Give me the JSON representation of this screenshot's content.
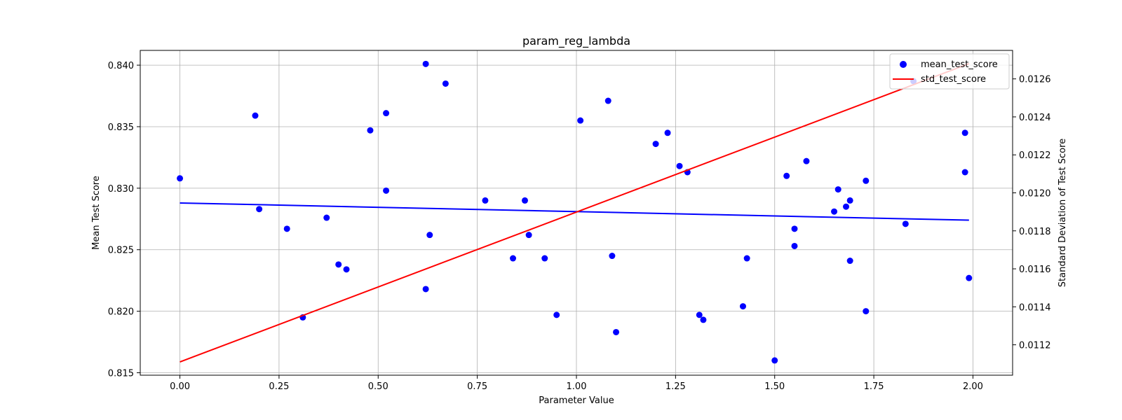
{
  "chart_data": {
    "type": "scatter",
    "title": "param_reg_lambda",
    "xlabel": "Parameter Value",
    "ylabel": "Mean Test Score",
    "y2label": "Standard Deviation of Test Score",
    "xlim": [
      -0.1,
      2.1
    ],
    "ylim": [
      0.8148,
      0.8412
    ],
    "y2lim": [
      0.01104,
      0.01275
    ],
    "xticks": [
      "0.00",
      "0.25",
      "0.50",
      "0.75",
      "1.00",
      "1.25",
      "1.50",
      "1.75",
      "2.00"
    ],
    "yticks": [
      "0.815",
      "0.820",
      "0.825",
      "0.830",
      "0.835",
      "0.840"
    ],
    "y2ticks": [
      "0.0112",
      "0.0114",
      "0.0116",
      "0.0118",
      "0.0120",
      "0.0122",
      "0.0124",
      "0.0126"
    ],
    "grid": true,
    "legend_position": "top-right",
    "series": [
      {
        "name": "mean_test_score",
        "kind": "scatter",
        "axis": "left",
        "color": "#0000ff",
        "x": [
          0.0,
          0.19,
          0.2,
          0.27,
          0.31,
          0.37,
          0.4,
          0.42,
          0.48,
          0.52,
          0.52,
          0.62,
          0.62,
          0.63,
          0.67,
          0.77,
          0.84,
          0.87,
          0.88,
          0.92,
          0.95,
          1.01,
          1.08,
          1.09,
          1.1,
          1.2,
          1.23,
          1.26,
          1.28,
          1.31,
          1.32,
          1.42,
          1.43,
          1.5,
          1.53,
          1.55,
          1.55,
          1.58,
          1.65,
          1.66,
          1.68,
          1.69,
          1.69,
          1.73,
          1.73,
          1.83,
          1.85,
          1.98,
          1.98,
          1.99
        ],
        "y": [
          0.8308,
          0.8359,
          0.8283,
          0.8267,
          0.8195,
          0.8276,
          0.8238,
          0.8234,
          0.8347,
          0.8298,
          0.8361,
          0.8218,
          0.8401,
          0.8262,
          0.8385,
          0.829,
          0.8243,
          0.829,
          0.8262,
          0.8243,
          0.8197,
          0.8355,
          0.8371,
          0.8245,
          0.8183,
          0.8336,
          0.8345,
          0.8318,
          0.8313,
          0.8197,
          0.8193,
          0.8204,
          0.8243,
          0.816,
          0.831,
          0.8267,
          0.8253,
          0.8322,
          0.8281,
          0.8299,
          0.8285,
          0.829,
          0.8241,
          0.8306,
          0.82,
          0.8271,
          0.8387,
          0.8345,
          0.8313,
          0.8227
        ]
      },
      {
        "name": "",
        "kind": "line",
        "axis": "left",
        "color": "#0000ff",
        "x": [
          0.0,
          1.99
        ],
        "y": [
          0.8288,
          0.8274
        ]
      },
      {
        "name": "std_test_score",
        "kind": "line",
        "axis": "right",
        "color": "#ff0000",
        "x": [
          0.0,
          1.99
        ],
        "y": [
          0.01111,
          0.01268
        ]
      }
    ]
  }
}
